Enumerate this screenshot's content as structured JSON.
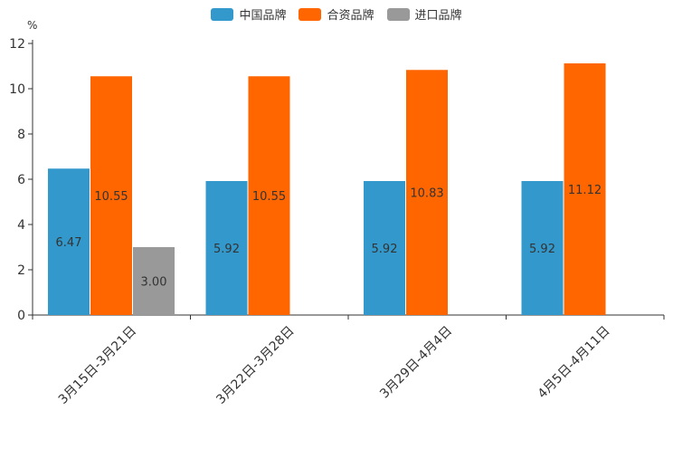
{
  "chart_data": {
    "type": "bar",
    "unit": "%",
    "categories": [
      "3月15日-3月21日",
      "3月22日-3月28日",
      "3月29日-4月4日",
      "4月5日-4月11日"
    ],
    "series": [
      {
        "name": "中国品牌",
        "color": "#3399cc",
        "values": [
          6.47,
          5.92,
          5.92,
          5.92
        ],
        "labels": [
          "6.47",
          "5.92",
          "5.92",
          "5.92"
        ]
      },
      {
        "name": "合资品牌",
        "color": "#ff6600",
        "values": [
          10.55,
          10.55,
          10.83,
          11.12
        ],
        "labels": [
          "10.55",
          "10.55",
          "10.83",
          "11.12"
        ]
      },
      {
        "name": "进口品牌",
        "color": "#999999",
        "values": [
          3.0,
          null,
          null,
          null
        ],
        "labels": [
          "3.00",
          null,
          null,
          null
        ]
      }
    ],
    "ylim": [
      0,
      12
    ],
    "yticks": [
      0,
      2,
      4,
      6,
      8,
      10,
      12
    ],
    "legend_position": "top-center",
    "grid": false
  }
}
